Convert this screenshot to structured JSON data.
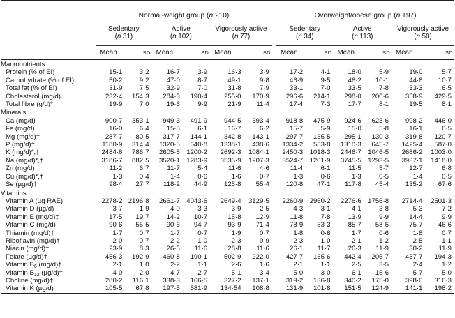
{
  "groups": [
    {
      "label": "Normal-weight group (",
      "n_label": "n",
      "n_value": " 210)"
    },
    {
      "label": "Overweight/obese group (",
      "n_label": "n",
      "n_value": " 197)"
    }
  ],
  "subgroups": [
    {
      "name": "Sedentary",
      "n_label": "n",
      "n_text": " 31)"
    },
    {
      "name": "Active",
      "n_label": "n",
      "n_text": " 102)"
    },
    {
      "name": "Vigorously active",
      "n_label": "n",
      "n_text": " 77)"
    },
    {
      "name": "Sedentary",
      "n_label": "n",
      "n_text": " 34)"
    },
    {
      "name": "Active",
      "n_label": "n",
      "n_text": " 113)"
    },
    {
      "name": "Vigorously active",
      "n_label": "n",
      "n_text": " 50)"
    }
  ],
  "col_headers": {
    "mean": "Mean",
    "sd": "SD",
    "open_paren": "("
  },
  "sections": [
    {
      "title": "Macronutrients",
      "rows": [
        {
          "label": "Protein (% of EI)",
          "v": [
            "15·1",
            "3·2",
            "16·7",
            "3·9",
            "16·3",
            "3·9",
            "17·2",
            "4·1",
            "18·0",
            "5·9",
            "19·0",
            "5·7"
          ]
        },
        {
          "label": "Carbohydrate (% of EI)",
          "v": [
            "50·2",
            "9·2",
            "47·0",
            "8·7",
            "49·1",
            "9·8",
            "46·9",
            "9·5",
            "46·2",
            "10·1",
            "44·8",
            "10·7"
          ]
        },
        {
          "label": "Total fat (% of EI)",
          "v": [
            "31·9",
            "7·5",
            "32·9",
            "7·0",
            "31·8",
            "7·9",
            "33·1",
            "7·0",
            "33·5",
            "7·8",
            "33·3",
            "6·5"
          ]
        },
        {
          "label": "Cholesterol (mg/d)",
          "v": [
            "232·4",
            "154·3",
            "284·3",
            "190·4",
            "255·0",
            "170·9",
            "296·6",
            "214·1",
            "298·0",
            "206·6",
            "358·9",
            "429·5"
          ]
        },
        {
          "label": "Total fibre (g/d)*",
          "v": [
            "19·9",
            "7·0",
            "19·6",
            "9·9",
            "21·9",
            "11·4",
            "17·4",
            "7·3",
            "17·7",
            "8·1",
            "19·5",
            "8·1"
          ]
        }
      ]
    },
    {
      "title": "Minerals",
      "rows": [
        {
          "label": "Ca (mg/d)",
          "v": [
            "900·7",
            "353·1",
            "949·3",
            "491·9",
            "944·5",
            "393·4",
            "918·8",
            "475·9",
            "924·6",
            "623·6",
            "998·2",
            "446·0"
          ]
        },
        {
          "label": "Fe (mg/d)",
          "v": [
            "16·0",
            "6·4",
            "15·5",
            "6·1",
            "16·7",
            "6·2",
            "15·7",
            "5·9",
            "15·0",
            "5·8",
            "16·1",
            "6·5"
          ]
        },
        {
          "label": "Mg (mg/d)†",
          "v": [
            "287·7",
            "80·5",
            "317·7",
            "144·1",
            "342·8",
            "143·1",
            "297·7",
            "135·5",
            "295·1",
            "130·3",
            "319·8",
            "120·7"
          ]
        },
        {
          "label": "P (mg/d)†",
          "v": [
            "1180·9",
            "314·4",
            "1320·5",
            "540·8",
            "1338·1",
            "438·6",
            "1334·2",
            "553·8",
            "1310·3",
            "645·7",
            "1425·4",
            "587·0"
          ]
        },
        {
          "label": "K (mg/d)*,†",
          "v": [
            "2484·8",
            "786·7",
            "2605·8",
            "1200·2",
            "2692·3",
            "1084·1",
            "2450·3",
            "1018·3",
            "2446·7",
            "1046·5",
            "2686·2",
            "1003·0"
          ]
        },
        {
          "label": "Na (mg/d)*,†",
          "v": [
            "3186·7",
            "882·5",
            "3520·1",
            "1283·9",
            "3535·9",
            "1207·3",
            "3524·7",
            "1201·9",
            "3745·5",
            "1293·5",
            "3937·1",
            "1418·0"
          ]
        },
        {
          "label": "Zn (mg/d)",
          "v": [
            "11·2",
            "6·7",
            "11·7",
            "5·4",
            "11·6",
            "4·6",
            "11·4",
            "6·1",
            "11·5",
            "5·7",
            "12·7",
            "6·8"
          ]
        },
        {
          "label": "Cu (mg/d)*,†",
          "v": [
            "1·3",
            "0·4",
            "1·4",
            "0·6",
            "1·6",
            "0·7",
            "1·3",
            "0·6",
            "1·3",
            "0·5",
            "1·4",
            "0·5"
          ]
        },
        {
          "label": "Se (µg/d)†",
          "v": [
            "98·4",
            "27·7",
            "118·2",
            "44·9",
            "125·8",
            "55·4",
            "120·8",
            "47·1",
            "117·8",
            "45·4",
            "135·2",
            "67·6"
          ]
        }
      ]
    },
    {
      "title": "Vitamins",
      "rows": [
        {
          "label": "Vitamin A (µg RAE)",
          "v": [
            "2278·2",
            "2196·8",
            "2661·7",
            "4043·6",
            "2649·4",
            "3129·5",
            "2260·9",
            "2960·2",
            "2276·6",
            "1756·8",
            "2714·4",
            "2501·3"
          ]
        },
        {
          "label": "Vitamin D (µg/d)",
          "v": [
            "3·7",
            "1·9",
            "4·0",
            "3·3",
            "3·9",
            "2·5",
            "4·3",
            "3·1",
            "4·1",
            "3·8",
            "5·3",
            "7·2"
          ]
        },
        {
          "label": "Vitamin E (mg/d)‡",
          "v": [
            "17·5",
            "19·7",
            "14·2",
            "10·7",
            "15·8",
            "12·9",
            "11·8",
            "7·8",
            "13·9",
            "9·9",
            "14·4",
            "9·9"
          ]
        },
        {
          "label": "Vitamin C (mg/d)",
          "v": [
            "90·6",
            "55·5",
            "90·6",
            "94·7",
            "93·9",
            "71·4",
            "78·9",
            "53·3",
            "85·7",
            "58·5",
            "75·7",
            "46·6"
          ]
        },
        {
          "label": "Thiamin (mg/d)†",
          "v": [
            "1·7",
            "0·7",
            "1·7",
            "0·7",
            "1·9",
            "0·7",
            "1·8",
            "0·6",
            "1·7",
            "0·6",
            "1·8",
            "0·7"
          ]
        },
        {
          "label": "Riboflavin (mg/d)†",
          "v": [
            "2·0",
            "0·7",
            "2·2",
            "1·0",
            "2·3",
            "0·9",
            "2·3",
            "1·0",
            "2·1",
            "1·2",
            "2·5",
            "1·1"
          ]
        },
        {
          "label": "Niacin (mg/d)†",
          "v": [
            "23·9",
            "8·3",
            "26·5",
            "11·6",
            "28·8",
            "11·6",
            "26·1",
            "11·7",
            "26·3",
            "11·9",
            "30·2",
            "11·9"
          ]
        },
        {
          "label": "Folate (µg/d)†",
          "v": [
            "456·3",
            "192·9",
            "460·8",
            "190·1",
            "502·9",
            "222·0",
            "427·7",
            "165·6",
            "442·4",
            "205·7",
            "457·7",
            "194·3"
          ]
        },
        {
          "label": "Vitamin B",
          "label_sub": "6",
          "label_suffix": " (mg/d)†",
          "v": [
            "2·1",
            "1·0",
            "2·2",
            "1·1",
            "2·6",
            "1·6",
            "2·1",
            "1·1",
            "2·5",
            "3·5",
            "2·4",
            "1·2"
          ]
        },
        {
          "label": "Vitamin B",
          "label_sub": "12",
          "label_suffix": " (µg/d)†",
          "v": [
            "4·0",
            "2·0",
            "4·7",
            "2·7",
            "5·1",
            "3·4",
            "5·0",
            "3·0",
            "6·1",
            "15·6",
            "5·7",
            "5·0"
          ]
        },
        {
          "label": "Choline (mg/d)†",
          "v": [
            "280·2",
            "116·1",
            "338·3",
            "166·5",
            "327·2",
            "137·1",
            "319·2",
            "136·8",
            "340·2",
            "175·0",
            "398·0",
            "316·3"
          ]
        },
        {
          "label": "Vitamin K (µg/d)",
          "v": [
            "105·5",
            "67·8",
            "197·5",
            "581·9",
            "134·54",
            "108·8",
            "131·9",
            "101·8",
            "151·5",
            "124·9",
            "141·1",
            "198·2"
          ]
        }
      ]
    }
  ]
}
